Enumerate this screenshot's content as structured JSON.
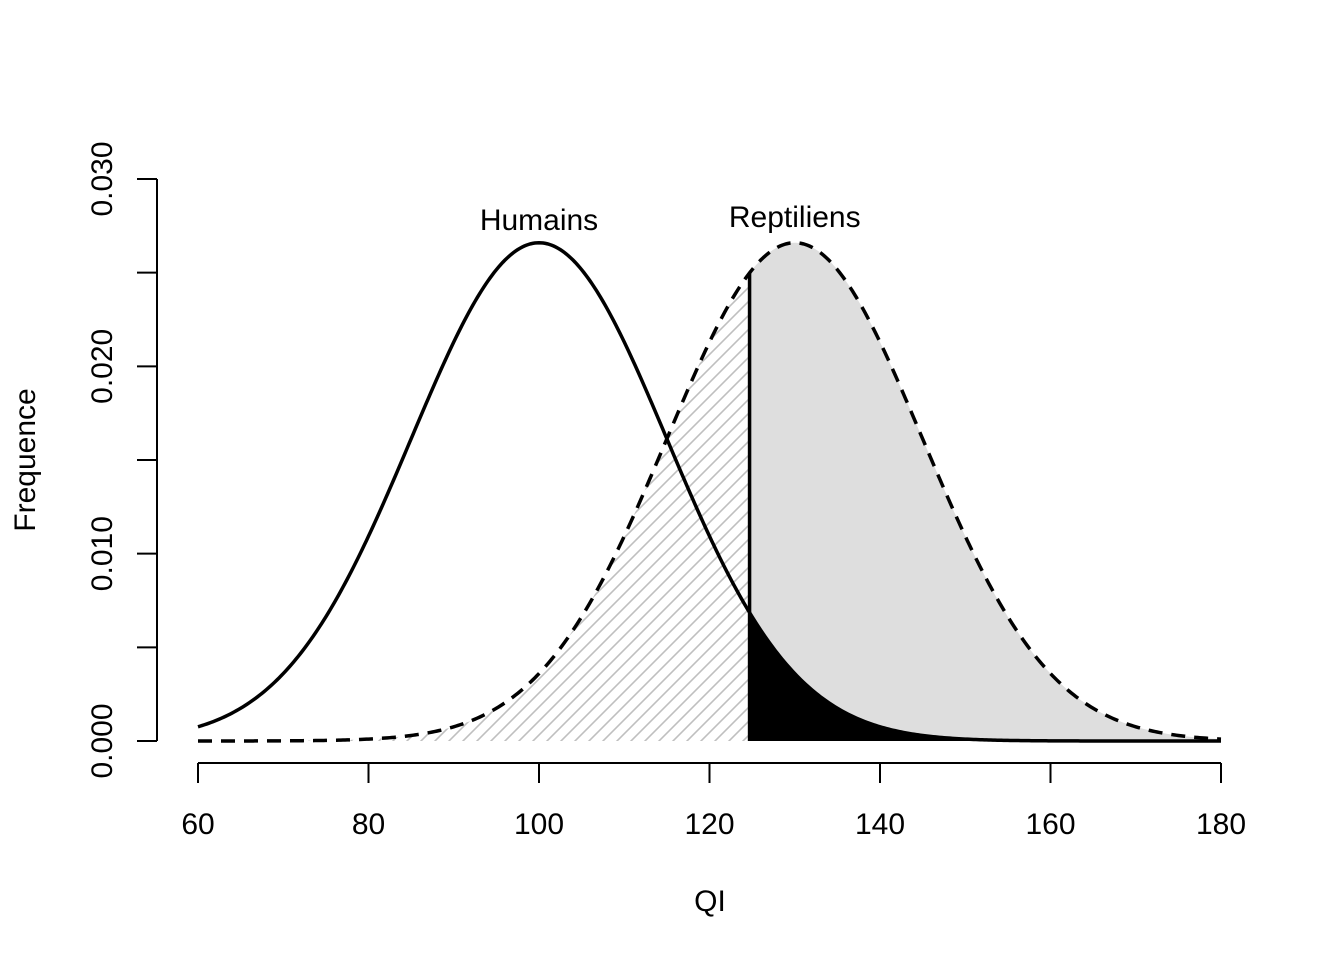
{
  "chart_data": {
    "type": "line",
    "title": "",
    "xlabel": "QI",
    "ylabel": "Frequence",
    "xlim": [
      60,
      180
    ],
    "ylim": [
      0,
      0.03
    ],
    "xticks": [
      "60",
      "80",
      "100",
      "120",
      "140",
      "160",
      "180"
    ],
    "yticks": [
      "0.000",
      "0.010",
      "0.020",
      "0.030"
    ],
    "grid": false,
    "threshold_x": 124.7,
    "series": [
      {
        "name": "Humains",
        "mean": 100,
        "sd": 15,
        "line_style": "solid"
      },
      {
        "name": "Reptiliens",
        "mean": 130,
        "sd": 15,
        "line_style": "dashed"
      }
    ],
    "shaded_regions": [
      {
        "curve": "Reptiliens",
        "from": 60,
        "to": 124.7,
        "fill": "hatched",
        "color": "#bfbfbf"
      },
      {
        "curve": "Reptiliens",
        "from": 124.7,
        "to": 180,
        "fill": "solid",
        "color": "#dedede"
      },
      {
        "curve": "Humains",
        "from": 124.7,
        "to": 180,
        "fill": "solid",
        "color": "#000000"
      }
    ]
  }
}
